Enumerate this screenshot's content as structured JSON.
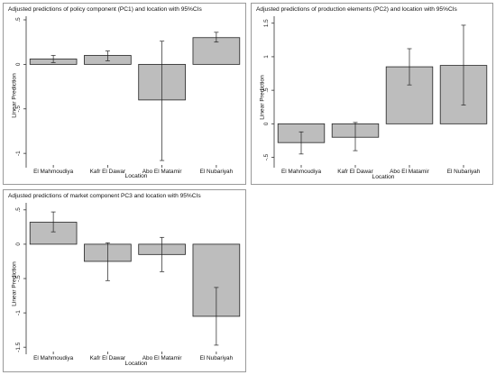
{
  "chart_data": [
    {
      "type": "bar",
      "title": "Adjusted predictions of policy component (PC1) and location with 95%CIs",
      "xlabel": "Location",
      "ylabel": "Linear Prediction",
      "categories": [
        "El Mahmoudiya",
        "Kafr El Dawar",
        "Abo El Matamir",
        "El Nubariyah"
      ],
      "values": [
        0.06,
        0.1,
        -0.4,
        0.3
      ],
      "ci_low": [
        0.02,
        0.04,
        -1.08,
        0.25
      ],
      "ci_high": [
        0.1,
        0.15,
        0.26,
        0.36
      ],
      "ylim": [
        -1.12,
        0.5
      ],
      "yticks": [
        -1,
        -0.5,
        0,
        0.5
      ],
      "ytick_labels": [
        "-1",
        "-.5",
        "0",
        ".5"
      ],
      "color": "#bdbdbd"
    },
    {
      "type": "bar",
      "title": "Adjusted predictions of production elements (PC2) and location with 95%CIs",
      "xlabel": "Location",
      "ylabel": "Linear Prediction",
      "categories": [
        "El Mahmoudiya",
        "Kafr El Dawar",
        "Abo El Matamir",
        "El Nubariyah"
      ],
      "values": [
        -0.28,
        -0.2,
        0.85,
        0.87
      ],
      "ci_low": [
        -0.45,
        -0.4,
        0.58,
        0.28
      ],
      "ci_high": [
        -0.12,
        0.02,
        1.12,
        1.47
      ],
      "ylim": [
        -0.6,
        1.55
      ],
      "yticks": [
        -0.5,
        0,
        0.5,
        1,
        1.5
      ],
      "ytick_labels": [
        "-.5",
        "0",
        ".5",
        "1",
        "1.5"
      ],
      "color": "#bdbdbd"
    },
    {
      "type": "bar",
      "title": "Adjusted predictions of market component PC3 and location with 95%CIs",
      "xlabel": "Location",
      "ylabel": "Linear Prediction",
      "categories": [
        "El Mahmoudiya",
        "Kafr El Dawar",
        "Abo El Matamir",
        "El Nubariyah"
      ],
      "values": [
        0.32,
        -0.25,
        -0.15,
        -1.05
      ],
      "ci_low": [
        0.18,
        -0.53,
        -0.4,
        -1.47
      ],
      "ci_high": [
        0.47,
        0.02,
        0.1,
        -0.63
      ],
      "ylim": [
        -1.55,
        0.55
      ],
      "yticks": [
        -1.5,
        -1,
        -0.5,
        0,
        0.5
      ],
      "ytick_labels": [
        "-1.5",
        "-1",
        "-.5",
        "0",
        ".5"
      ],
      "color": "#bdbdbd"
    }
  ]
}
